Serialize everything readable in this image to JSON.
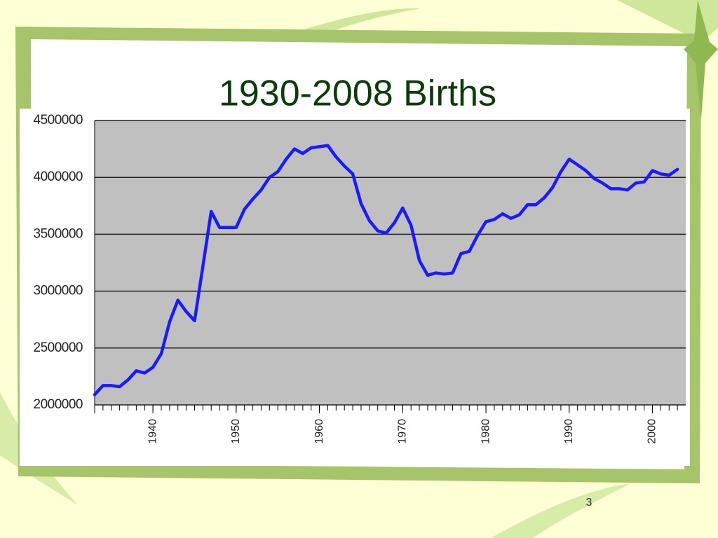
{
  "chart_data": {
    "type": "line",
    "title": "1930-2008 Births",
    "x": [
      1933,
      1934,
      1935,
      1936,
      1937,
      1938,
      1939,
      1940,
      1941,
      1942,
      1943,
      1944,
      1945,
      1946,
      1947,
      1948,
      1949,
      1950,
      1951,
      1952,
      1953,
      1954,
      1955,
      1956,
      1957,
      1958,
      1959,
      1960,
      1961,
      1962,
      1963,
      1964,
      1965,
      1966,
      1967,
      1968,
      1969,
      1970,
      1971,
      1972,
      1973,
      1974,
      1975,
      1976,
      1977,
      1978,
      1979,
      1980,
      1981,
      1982,
      1983,
      1984,
      1985,
      1986,
      1987,
      1988,
      1989,
      1990,
      1991,
      1992,
      1993,
      1994,
      1995,
      1996,
      1997,
      1998,
      1999,
      2000,
      2001,
      2002,
      2003
    ],
    "values": [
      2090000,
      2170000,
      2170000,
      2160000,
      2220000,
      2300000,
      2280000,
      2330000,
      2450000,
      2730000,
      2920000,
      2820000,
      2740000,
      3220000,
      3700000,
      3560000,
      3560000,
      3560000,
      3720000,
      3810000,
      3890000,
      4000000,
      4050000,
      4160000,
      4250000,
      4210000,
      4260000,
      4270000,
      4280000,
      4180000,
      4100000,
      4030000,
      3770000,
      3620000,
      3530000,
      3510000,
      3600000,
      3730000,
      3580000,
      3270000,
      3140000,
      3160000,
      3150000,
      3160000,
      3330000,
      3350000,
      3490000,
      3610000,
      3630000,
      3680000,
      3640000,
      3670000,
      3760000,
      3760000,
      3820000,
      3910000,
      4050000,
      4160000,
      4110000,
      4060000,
      3990000,
      3950000,
      3900000,
      3900000,
      3890000,
      3950000,
      3960000,
      4060000,
      4030000,
      4020000,
      4070000
    ],
    "color": "#1a1aff",
    "xlim": [
      1933,
      2004
    ],
    "xticks": [
      1940,
      1950,
      1960,
      1970,
      1980,
      1990,
      2000
    ],
    "ylim": [
      2000000,
      4500000
    ],
    "yticks": [
      2000000,
      2500000,
      3000000,
      3500000,
      4000000,
      4500000
    ],
    "grid": true
  },
  "page_number": 3
}
